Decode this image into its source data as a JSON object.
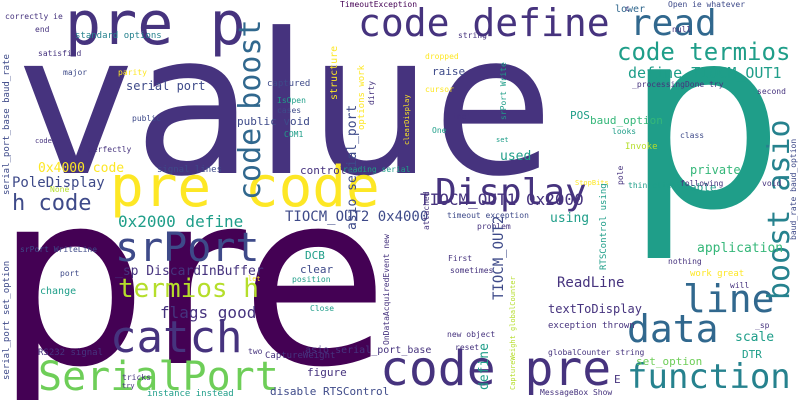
{
  "palette": {
    "purple_dark": "#440154",
    "purple": "#46337e",
    "indigo": "#3e4a89",
    "blue": "#31688e",
    "teal_blue": "#26828e",
    "teal": "#1f9e89",
    "green": "#35b779",
    "light_green": "#6ece58",
    "yellow_green": "#b5de2b",
    "yellow": "#fde725"
  },
  "words": {
    "value": "value",
    "p_big": "p",
    "pre_big": "pre",
    "pre_p": "pre p",
    "code_define": "code define",
    "pre_code": "pre code",
    "code_pre": "code pre",
    "code_boost": "code boost",
    "display": "Display",
    "read": "read",
    "code_termios": "code termios",
    "define_tiocm_out1": "define TIOCM_OUT1",
    "boost_asio": "boost asio",
    "h_code": "h code",
    "srport": "srPort",
    "termios_h": "termios h",
    "catch": "catch",
    "serialport": "SerialPort",
    "data": "data",
    "line": "line",
    "function": "function",
    "flags_good": "flags good",
    "tiocm_out1_0x2000": "TIOCM_OUT1 0x2000",
    "tiocm_out2_0x4000": "TIOCM_OUT2 0x4000",
    "zero_x2000_define": "0x2000 define",
    "zero_x4000_code": "0x4000 code",
    "poledisplay": "PoleDisplay",
    "sp_discardinbuffer": "_sp DiscardInBuffer",
    "serial_port": "serial port",
    "public_void": "public void",
    "readline": "ReadLine",
    "texttodisplay": "textToDisplay",
    "asio_serial_port": "asio serial_port",
    "asio_serial_port_base": "asio serial_port_base",
    "tiocm_out2": "TIOCM_OUT2",
    "define": "define",
    "scale": "scale",
    "dtr": "DTR",
    "application": "application",
    "private": "private",
    "able": "able",
    "used": "used",
    "using": "using",
    "pos": "POS",
    "raise": "raise",
    "captured": "captured",
    "control": "control",
    "signal_lines": "signal lines",
    "figure": "figure",
    "clear": "clear",
    "dcb": "DCB",
    "change": "change",
    "disable_rtscontrol": "disable RTSControl",
    "captureweight": "CaptureWeight",
    "standard_options": "standard options",
    "serial_port_base_baud_rate": "serial_port_base baud_rate",
    "serial_port_set_option": "serial_port set_option",
    "baud_option": "baud_option",
    "baud_rate_baud_option": "baud_rate baud_option",
    "set_option": "set_option",
    "timeoutexception": "TimeoutException",
    "lower": "lower",
    "invoke": "Invoke",
    "rs232_signal": "RS232 signal",
    "instance_instead": "instance instead",
    "messagebox_show": "MessageBox Show",
    "exception_thrown": "exception thrown",
    "new_object": "new object",
    "reset": "reset",
    "globalcounter_string": "globalCounter string",
    "timeout_exception": "timeout exception",
    "sometimes": "sometimes",
    "first": "First",
    "rtscontrol_using": "RTSControl using",
    "work_great": "work great",
    "nothing": "nothing",
    "will": "will",
    "thin_client": "thin client",
    "following": "following",
    "class": "class",
    "void": "void",
    "second": "second",
    "open_ie_whatever": "Open  ie whatever",
    "processingdone_try": "_processingDone try",
    "null": "null",
    "correctly_ie": "correctly ie",
    "end": "end",
    "satisfied": "satisfied",
    "major": "major",
    "parity": "parity",
    "isopen": "IsOpen",
    "cases": "cases",
    "com1": "COM1",
    "public": "public",
    "perfectly": "perfectly",
    "code": "code",
    "none": "None",
    "port": "port",
    "position": "position",
    "close": "Close",
    "string": "string",
    "dropped": "dropped",
    "structure": "structure",
    "options_work": "options work",
    "dirty": "dirty",
    "cursor": "cursor",
    "clearDisplay": "clearDisplay",
    "srport_write": "srPort Write",
    "line_tick": "line'",
    "one": "One",
    "set": "set",
    "looks": "looks",
    "reading_serial": "reading serial",
    "ondataacquiredevent_new": "OnDataAcquiredEvent new",
    "attached": "attached",
    "problem": "problem",
    "stopbits": "StopBits",
    "srport_writeline": "srPort WriteLine",
    "pole": "pole",
    "let": "let",
    "two": "two",
    "tricks": "tricks",
    "try": "try",
    "sp": "_sp",
    "e": "E",
    "c": "c",
    "captureweight_globalcounter": "CaptureWeight globalCounter"
  }
}
